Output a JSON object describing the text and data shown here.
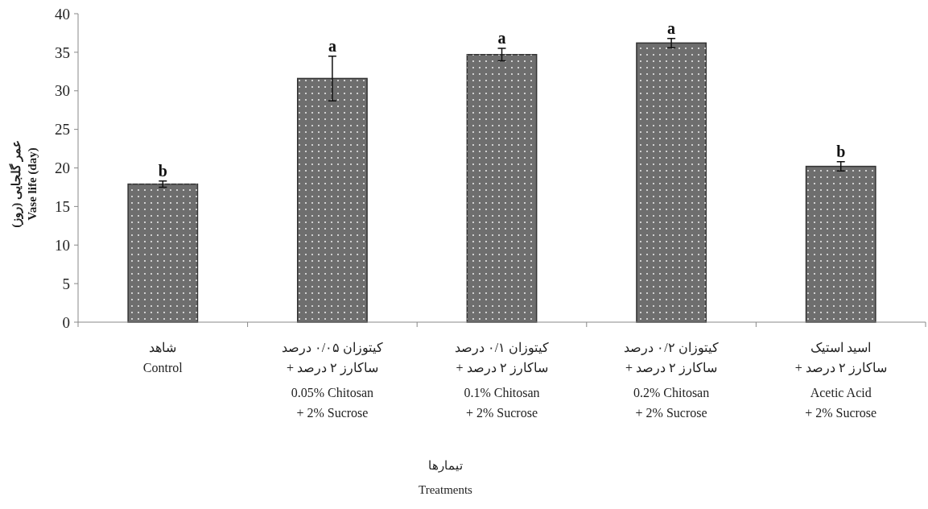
{
  "chart_data": {
    "type": "bar",
    "categories": [
      "شاهد\nControl",
      "کیتوزان ۰/۰۵ درصد\n+ ساکارز ۲ درصد\n0.05% Chitosan\n+ 2% Sucrose",
      "کیتوزان ۰/۱ درصد\n+ ساکارز ۲ درصد\n0.1% Chitosan\n+ 2% Sucrose",
      "کیتوزان ۰/۲ درصد\n+ ساکارز ۲ درصد\n0.2% Chitosan\n+ 2% Sucrose",
      "اسید استیک\n+ ساکارز ۲ درصد\nAcetic Acid\n+ 2% Sucrose"
    ],
    "values": [
      17.9,
      31.6,
      34.7,
      36.2,
      20.2
    ],
    "errors": [
      0.4,
      2.9,
      0.8,
      0.6,
      0.6
    ],
    "color": "#6e6e6e",
    "ylim": [
      0,
      40
    ],
    "yticks": [
      0,
      5,
      10,
      15,
      20,
      25,
      30,
      35,
      40
    ],
    "ylabel": "عمر گلجایی (روز)\nVase life (day)",
    "xlabel": "تیمارها\nTreatments",
    "annotations": [
      {
        "text": "b",
        "x": "شاهد\nControl",
        "y": 18.3
      },
      {
        "text": "a",
        "x": "کیتوزان ۰/۰۵ درصد\n+ ساکارز ۲ درصد\n0.05% Chitosan\n+ 2% Sucrose",
        "y": 34.5
      },
      {
        "text": "a",
        "x": "کیتوزان ۰/۱ درصد\n+ ساکارز ۲ درصد\n0.1% Chitosan\n+ 2% Sucrose",
        "y": 35.5
      },
      {
        "text": "a",
        "x": "کیتوزان ۰/۲ درصد\n+ ساکارز ۲ درصد\n0.2% Chitosan\n+ 2% Sucrose",
        "y": 36.8
      },
      {
        "text": "b",
        "x": "اسید استیک\n+ ساکارز ۲ درصد\nAcetic Acid\n+ 2% Sucrose",
        "y": 20.8
      }
    ],
    "grid": false
  }
}
